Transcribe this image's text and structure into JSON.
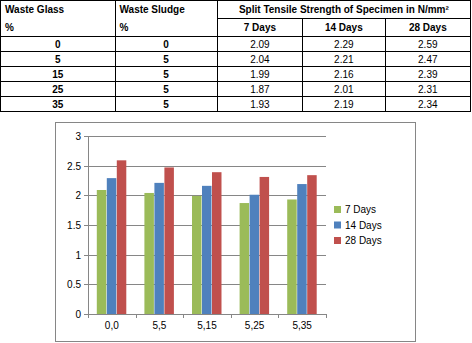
{
  "table": {
    "header": [
      "Waste Glass",
      "%",
      "Waste Sludge",
      "%",
      "Split Tensile Strength of Specimen in N/mm²",
      "7 Days",
      "14 Days",
      "28 Days"
    ],
    "rows": [
      [
        "0",
        "0",
        "2.09",
        "2.29",
        "2.59"
      ],
      [
        "5",
        "5",
        "2.04",
        "2.21",
        "2.47"
      ],
      [
        "15",
        "5",
        "1.99",
        "2.16",
        "2.39"
      ],
      [
        "25",
        "5",
        "1.87",
        "2.01",
        "2.31"
      ],
      [
        "35",
        "5",
        "1.93",
        "2.19",
        "2.34"
      ]
    ]
  },
  "chart_data": {
    "type": "bar",
    "categories": [
      "0,0",
      "5,5",
      "5,15",
      "5,25",
      "5,35"
    ],
    "series": [
      {
        "name": "7 Days",
        "color": "#9bbb59",
        "values": [
          2.09,
          2.04,
          1.99,
          1.87,
          1.93
        ]
      },
      {
        "name": "14 Days",
        "color": "#4f81bd",
        "values": [
          2.29,
          2.21,
          2.16,
          2.01,
          2.19
        ]
      },
      {
        "name": "28 Days",
        "color": "#c0504d",
        "values": [
          2.59,
          2.47,
          2.39,
          2.31,
          2.34
        ]
      }
    ],
    "ylim": [
      0,
      3
    ],
    "yticks": [
      0,
      0.5,
      1,
      1.5,
      2,
      2.5,
      3
    ],
    "grid": true,
    "legend": "right"
  }
}
